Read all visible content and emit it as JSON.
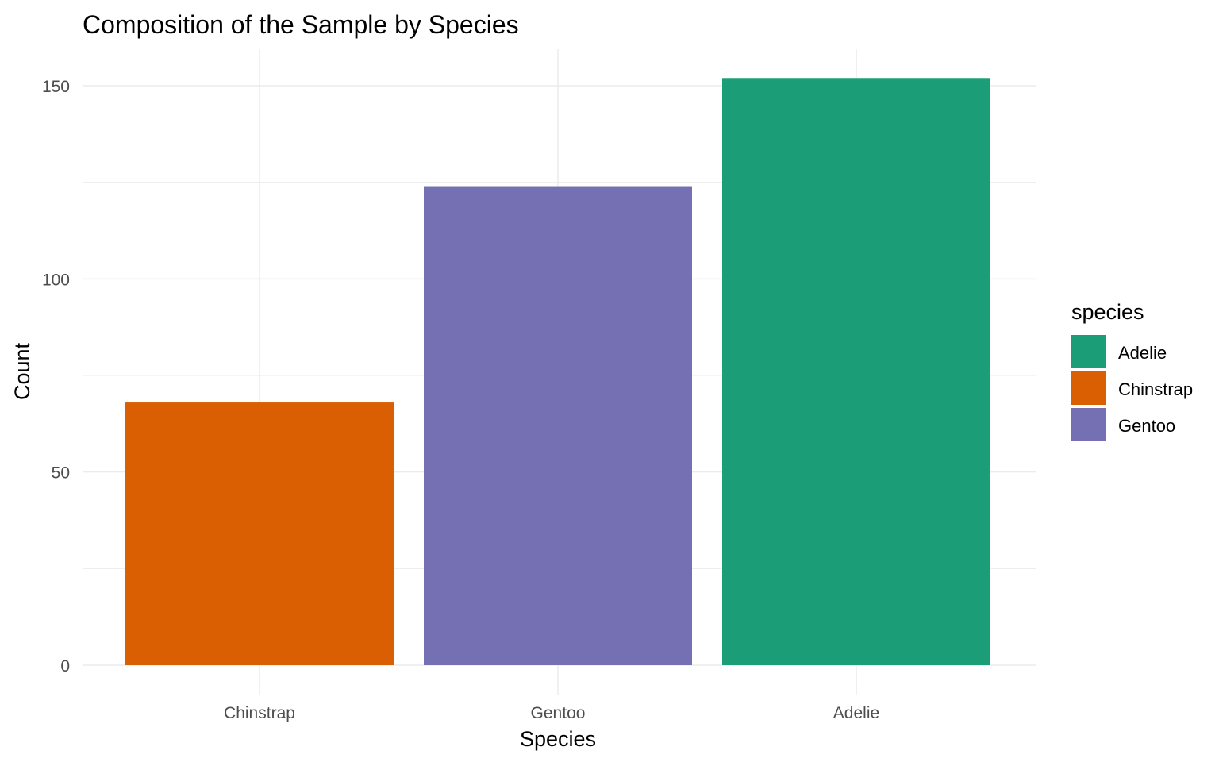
{
  "chart_data": {
    "type": "bar",
    "title": "Composition of the Sample by Species",
    "xlabel": "Species",
    "ylabel": "Count",
    "categories": [
      "Chinstrap",
      "Gentoo",
      "Adelie"
    ],
    "values": [
      68,
      124,
      152
    ],
    "colors": [
      "#D95F02",
      "#7570B3",
      "#1B9E77"
    ],
    "ylim": [
      0,
      160
    ],
    "yticks": [
      0,
      50,
      100,
      150
    ],
    "grid": true,
    "legend": {
      "title": "species",
      "placement": "right",
      "entries": [
        {
          "label": "Adelie",
          "color": "#1B9E77"
        },
        {
          "label": "Chinstrap",
          "color": "#D95F02"
        },
        {
          "label": "Gentoo",
          "color": "#7570B3"
        }
      ]
    }
  }
}
